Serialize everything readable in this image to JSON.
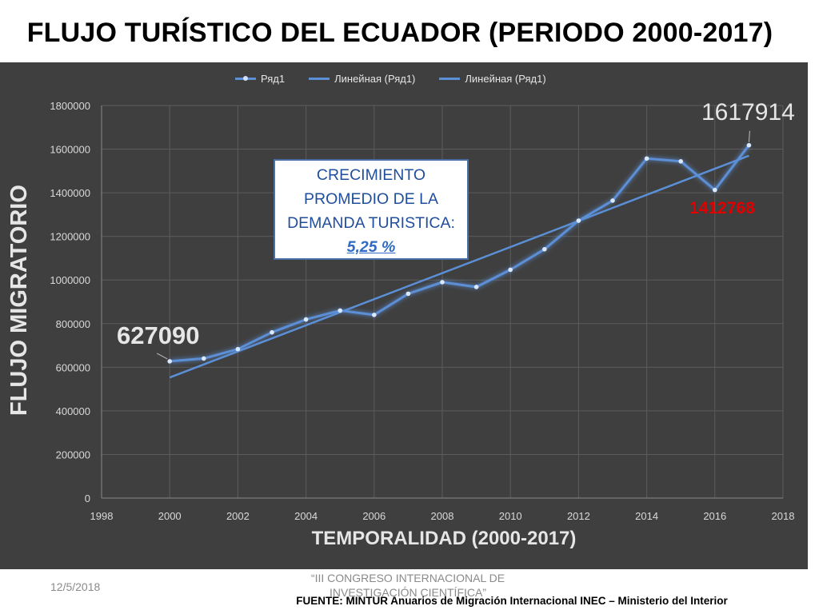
{
  "title": "FLUJO TURÍSTICO DEL ECUADOR (PERIODO 2000-2017)",
  "callout": {
    "line1": "CRECIMIENTO",
    "line2": "PROMEDIO DE LA",
    "line3": "DEMANDA TURISTICA:",
    "value": "5,25 %"
  },
  "annotations": {
    "start_value": "627090",
    "end_value": "1617914",
    "value_2016": "1412768"
  },
  "footer": {
    "date": "12/5/2018",
    "congress_line1": "“III CONGRESO INTERNACIONAL DE",
    "congress_line2": "INVESTIGACIÓN CIENTÍFICA”",
    "source": "FUENTE: MINTUR Anuarios de Migración Internacional INEC – Ministerio del Interior"
  },
  "colors": {
    "background": "#3f3f3f",
    "series": "#5b8fd6",
    "trend": "#5b8fd6",
    "callout_text": "#1f4e9c",
    "highlight_red": "#e00000"
  },
  "chart_data": {
    "type": "line",
    "xlabel": "TEMPORALIDAD (2000-2017)",
    "ylabel": "FLUJO MIGRATORIO",
    "xlim": [
      1998,
      2018
    ],
    "ylim": [
      0,
      1800000
    ],
    "x_ticks": [
      "1998",
      "2000",
      "2002",
      "2004",
      "2006",
      "2008",
      "2010",
      "2012",
      "2014",
      "2016",
      "2018"
    ],
    "y_ticks": [
      "0",
      "200000",
      "400000",
      "600000",
      "800000",
      "1000000",
      "1200000",
      "1400000",
      "1600000",
      "1800000"
    ],
    "grid": true,
    "legend_position": "top",
    "legend": [
      "Ряд1",
      "Линейная (Ряд1)",
      "Линейная (Ряд1)"
    ],
    "x": [
      2000,
      2001,
      2002,
      2003,
      2004,
      2005,
      2006,
      2007,
      2008,
      2009,
      2010,
      2011,
      2012,
      2013,
      2014,
      2015,
      2016,
      2017
    ],
    "series": [
      {
        "name": "Ряд1",
        "values": [
          627090,
          640000,
          683000,
          760000,
          819000,
          860000,
          840000,
          937000,
          990000,
          968000,
          1047000,
          1141000,
          1272000,
          1364000,
          1557000,
          1544000,
          1412768,
          1617914
        ]
      }
    ],
    "trendline": {
      "name": "Линейная (Ряд1)",
      "start": [
        2000,
        553000
      ],
      "end": [
        2017,
        1570000
      ]
    }
  }
}
